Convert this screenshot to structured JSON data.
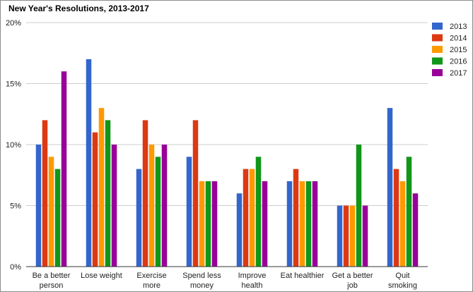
{
  "chart_data": {
    "type": "bar",
    "title": "New Year's Resolutions, 2013-2017",
    "categories": [
      [
        "Be a better",
        "person"
      ],
      [
        "Lose weight"
      ],
      [
        "Exercise",
        "more"
      ],
      [
        "Spend less",
        "money"
      ],
      [
        "Improve",
        "health"
      ],
      [
        "Eat healthier"
      ],
      [
        "Get a better",
        "job"
      ],
      [
        "Quit",
        "smoking"
      ]
    ],
    "series": [
      {
        "name": "2013",
        "color": "#3366cc",
        "values": [
          10,
          17,
          8,
          9,
          6,
          7,
          5,
          13
        ]
      },
      {
        "name": "2014",
        "color": "#dc3912",
        "values": [
          12,
          11,
          12,
          12,
          8,
          8,
          5,
          8
        ]
      },
      {
        "name": "2015",
        "color": "#ff9900",
        "values": [
          9,
          13,
          10,
          7,
          8,
          7,
          5,
          7
        ]
      },
      {
        "name": "2016",
        "color": "#109618",
        "values": [
          8,
          12,
          9,
          7,
          9,
          7,
          10,
          9
        ]
      },
      {
        "name": "2017",
        "color": "#990099",
        "values": [
          16,
          10,
          10,
          7,
          7,
          7,
          5,
          6
        ]
      }
    ],
    "yticks": [
      0,
      5,
      10,
      15,
      20
    ],
    "ytick_labels": [
      "0%",
      "5%",
      "10%",
      "15%",
      "20%"
    ],
    "ylim": [
      0,
      20
    ],
    "xlabel": "",
    "ylabel": "",
    "grid": true,
    "legend_position": "right"
  }
}
